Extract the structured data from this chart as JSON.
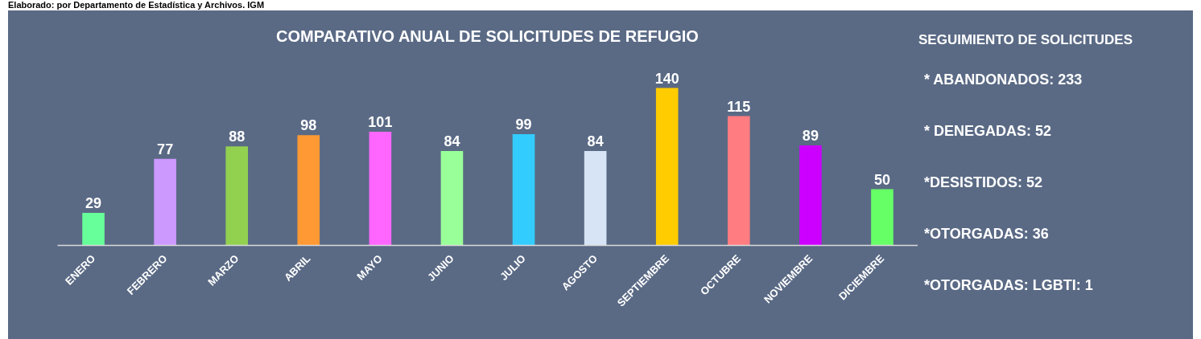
{
  "chart_data": {
    "type": "bar",
    "title": "COMPARATIVO ANUAL DE SOLICITUDES DE REFUGIO",
    "categories": [
      "ENERO",
      "FEBRERO",
      "MARZO",
      "ABRIL",
      "MAYO",
      "JUNIO",
      "JULIO",
      "AGOSTO",
      "SEPTIEMBRE",
      "OCTUBRE",
      "NOVIEMBRE",
      "DICIEMBRE"
    ],
    "values": [
      29,
      77,
      88,
      98,
      101,
      84,
      99,
      84,
      140,
      115,
      89,
      50
    ],
    "colors": [
      "#66ff99",
      "#cc99ff",
      "#92d050",
      "#ff9933",
      "#ff66ff",
      "#99ff99",
      "#33ccff",
      "#d6e4f5",
      "#ffcc00",
      "#ff7c80",
      "#cc00ff",
      "#66ff66"
    ],
    "data_labels": true,
    "annotations": [
      "Elaborado: por Departamento de Estadística y Archivos. IGM",
      "SEGUIMIENTO DE SOLICITUDES",
      "* ABANDONADOS: 233",
      "* DENEGADAS: 52",
      "*DESISTIDOS: 52",
      "*OTORGADAS: 36",
      "*OTORGADAS: LGBTI: 1"
    ]
  }
}
